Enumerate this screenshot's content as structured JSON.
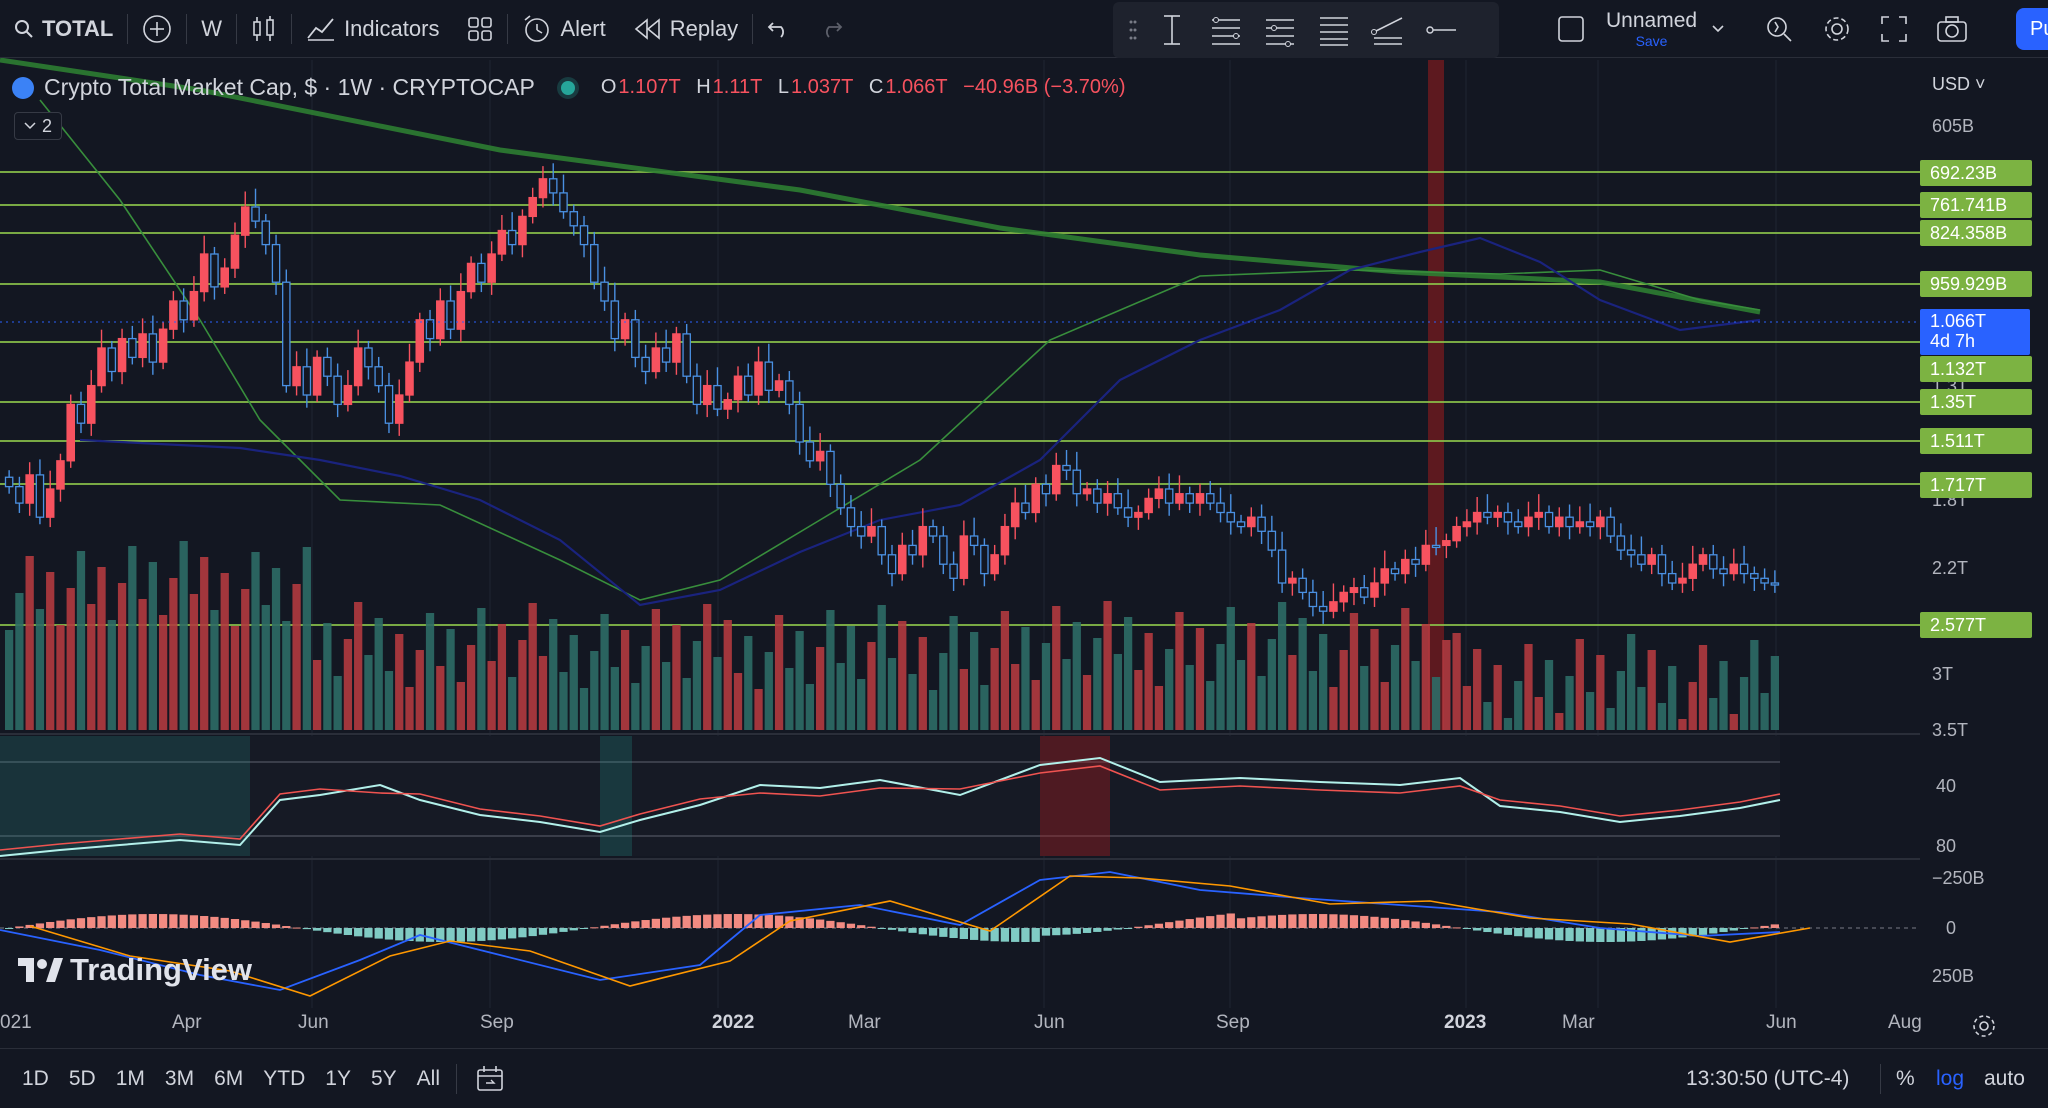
{
  "toolbar": {
    "symbol": "TOTAL",
    "interval": "W",
    "indicators_label": "Indicators",
    "alert_label": "Alert",
    "replay_label": "Replay",
    "layout_name": "Unnamed",
    "save_label": "Save",
    "publish_label": "Pu"
  },
  "legend": {
    "title": "Crypto Total Market Cap, $ · 1W · CRYPTOCAP",
    "open_label": "O",
    "open": "1.107T",
    "high_label": "H",
    "high": "1.11T",
    "low_label": "L",
    "low": "1.037T",
    "close_label": "C",
    "close": "1.066T",
    "change": "−40.96B (−3.70%)",
    "collapse_count": "2"
  },
  "price_scale": {
    "currency": "USD",
    "labels": [
      "605B",
      "1.3T",
      "1.8T",
      "2.2T",
      "3T",
      "3.5T"
    ],
    "tags": [
      "692.23B",
      "761.741B",
      "824.358B",
      "959.929B",
      "1.132T",
      "1.35T",
      "1.511T",
      "1.717T",
      "2.577T"
    ],
    "current_price": "1.066T",
    "countdown": "4d 7h"
  },
  "rsi_scale": {
    "labels": [
      "40",
      "80"
    ]
  },
  "macd_scale": {
    "labels": [
      "−250B",
      "0",
      "250B"
    ]
  },
  "time_axis": {
    "labels": [
      "021",
      "Apr",
      "Jun",
      "Sep",
      "2022",
      "Mar",
      "Jun",
      "Sep",
      "2023",
      "Mar",
      "Jun",
      "Aug"
    ]
  },
  "bottom": {
    "ranges": [
      "1D",
      "5D",
      "1M",
      "3M",
      "6M",
      "YTD",
      "1Y",
      "5Y",
      "All"
    ],
    "clock": "13:30:50 (UTC-4)",
    "percent_label": "%",
    "log_label": "log",
    "auto_label": "auto"
  },
  "watermark": "TradingView",
  "colors": {
    "up": "#f7525f",
    "down": "#4a90e2",
    "hline": "#8bc34a",
    "tag_green": "#7cb342",
    "current_tag": "#2962ff",
    "ma_long": "#2e7d32",
    "ma_short": "#1a237e"
  }
}
